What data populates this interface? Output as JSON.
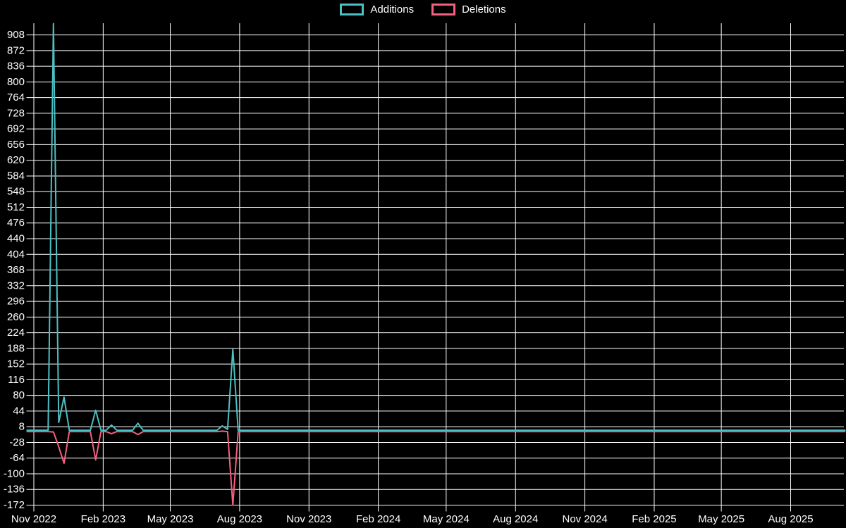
{
  "legend": {
    "items": [
      {
        "label": "Additions",
        "color": "#4cc0c4"
      },
      {
        "label": "Deletions",
        "color": "#f4617f"
      }
    ]
  },
  "colors": {
    "background": "#000000",
    "grid": "#ffffff",
    "text": "#ffffff",
    "additions": "#4cc0c4",
    "deletions": "#f4617f"
  },
  "chart_data": {
    "type": "line",
    "title": "",
    "xlabel": "",
    "ylabel": "",
    "grid": true,
    "legend_position": "top-center",
    "ylim": [
      -172,
      934
    ],
    "y_axis": {
      "tick_step": 36,
      "tick_labels": [
        908,
        872,
        836,
        800,
        764,
        728,
        692,
        656,
        620,
        584,
        548,
        512,
        476,
        440,
        404,
        368,
        332,
        296,
        260,
        224,
        188,
        152,
        116,
        80,
        44,
        8,
        -28,
        -64,
        -100,
        -136,
        -172
      ]
    },
    "x_axis": {
      "ticks": [
        {
          "label": "Nov 2022",
          "date": "2022-11-01"
        },
        {
          "label": "Feb 2023",
          "date": "2023-02-01"
        },
        {
          "label": "May 2023",
          "date": "2023-05-01"
        },
        {
          "label": "Aug 2023",
          "date": "2023-08-01"
        },
        {
          "label": "Nov 2023",
          "date": "2023-11-01"
        },
        {
          "label": "Feb 2024",
          "date": "2024-02-01"
        },
        {
          "label": "May 2024",
          "date": "2024-05-01"
        },
        {
          "label": "Aug 2024",
          "date": "2024-08-01"
        },
        {
          "label": "Nov 2024",
          "date": "2024-11-01"
        },
        {
          "label": "Feb 2025",
          "date": "2025-02-01"
        },
        {
          "label": "May 2025",
          "date": "2025-05-01"
        },
        {
          "label": "Aug 2025",
          "date": "2025-08-01"
        }
      ]
    },
    "series": [
      {
        "name": "Additions",
        "key": "additions",
        "color": "#4cc0c4"
      },
      {
        "name": "Deletions",
        "key": "deletions",
        "color": "#f4617f"
      }
    ],
    "weekly_points": {
      "interval": "weekly",
      "start": "2022-10-23",
      "end": "2025-10-12",
      "default": {
        "additions": 0,
        "deletions": 0
      },
      "nonzero": [
        {
          "date": "2022-11-27",
          "additions": 934,
          "deletions": -4
        },
        {
          "date": "2022-12-04",
          "additions": 18,
          "deletions": -38
        },
        {
          "date": "2022-12-11",
          "additions": 76,
          "deletions": -76
        },
        {
          "date": "2023-01-22",
          "additions": 46,
          "deletions": -68
        },
        {
          "date": "2023-02-12",
          "additions": 12,
          "deletions": -8
        },
        {
          "date": "2023-03-19",
          "additions": 16,
          "deletions": -10
        },
        {
          "date": "2023-07-09",
          "additions": 10,
          "deletions": -2
        },
        {
          "date": "2023-07-16",
          "additions": 2,
          "deletions": 0
        },
        {
          "date": "2023-07-23",
          "additions": 186,
          "deletions": -172
        }
      ]
    }
  }
}
